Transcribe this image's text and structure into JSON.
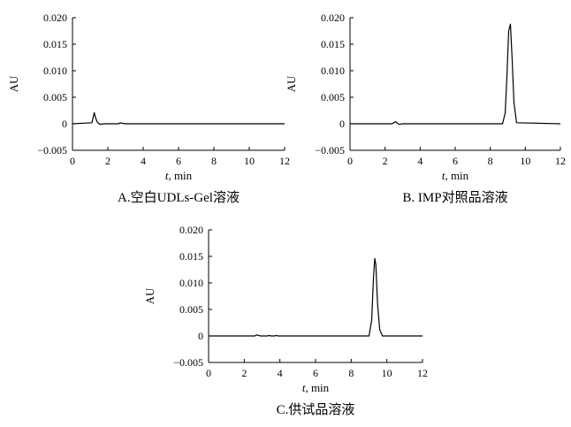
{
  "chart_data": [
    {
      "type": "line",
      "caption": "A.空白UDLs-Gel溶液",
      "xlabel_var": "t",
      "xlabel_unit": ", min",
      "ylabel": "AU",
      "xlim": [
        0,
        12
      ],
      "ylim": [
        -0.005,
        0.02
      ],
      "xticks": [
        0,
        2,
        4,
        6,
        8,
        10,
        12
      ],
      "yticks": [
        -0.005,
        0,
        0.005,
        0.01,
        0.015,
        0.02
      ],
      "ytick_labels": [
        "−0.005",
        "0",
        "0.005",
        "0.010",
        "0.015",
        "0.020"
      ],
      "series": [
        {
          "x": [
            0,
            1.1,
            1.17,
            1.23,
            1.3,
            1.4,
            1.55,
            1.8,
            2.6,
            2.7,
            2.8,
            3.0,
            12
          ],
          "y": [
            0,
            0.0002,
            0.0012,
            0.0021,
            0.0012,
            0.0003,
            -0.0001,
            0,
            0,
            0.0002,
            0.0001,
            0,
            0
          ]
        }
      ]
    },
    {
      "type": "line",
      "caption": "B. IMP对照品溶液",
      "xlabel_var": "t",
      "xlabel_unit": ", min",
      "ylabel": "AU",
      "xlim": [
        0,
        12
      ],
      "ylim": [
        -0.005,
        0.02
      ],
      "xticks": [
        0,
        2,
        4,
        6,
        8,
        10,
        12
      ],
      "yticks": [
        -0.005,
        0,
        0.005,
        0.01,
        0.015,
        0.02
      ],
      "ytick_labels": [
        "−0.005",
        "0",
        "0.005",
        "0.010",
        "0.015",
        "0.020"
      ],
      "series": [
        {
          "x": [
            0,
            2.4,
            2.5,
            2.6,
            2.7,
            2.8,
            3.0,
            8.7,
            8.85,
            8.95,
            9.05,
            9.15,
            9.25,
            9.35,
            9.5,
            12
          ],
          "y": [
            0,
            0,
            0.0002,
            0.0004,
            0.0001,
            -0.0001,
            0,
            0,
            0.002,
            0.009,
            0.0175,
            0.0188,
            0.012,
            0.004,
            0.0002,
            0
          ]
        }
      ]
    },
    {
      "type": "line",
      "caption": "C.供试品溶液",
      "xlabel_var": "t",
      "xlabel_unit": ", min",
      "ylabel": "AU",
      "xlim": [
        0,
        12
      ],
      "ylim": [
        -0.005,
        0.02
      ],
      "xticks": [
        0,
        2,
        4,
        6,
        8,
        10,
        12
      ],
      "yticks": [
        -0.005,
        0,
        0.005,
        0.01,
        0.015,
        0.02
      ],
      "ytick_labels": [
        "−0.005",
        "0",
        "0.005",
        "0.010",
        "0.015",
        "0.020"
      ],
      "series": [
        {
          "x": [
            0,
            2.6,
            2.7,
            2.8,
            2.9,
            3.3,
            3.4,
            3.5,
            3.7,
            3.8,
            3.9,
            9.0,
            9.15,
            9.25,
            9.32,
            9.38,
            9.48,
            9.6,
            9.75,
            12
          ],
          "y": [
            0,
            0,
            0.0002,
            0.0001,
            0,
            0,
            0.0001,
            0,
            0,
            0.0001,
            0,
            0,
            0.003,
            0.011,
            0.0146,
            0.0135,
            0.006,
            0.0012,
            0,
            0
          ]
        }
      ]
    }
  ]
}
